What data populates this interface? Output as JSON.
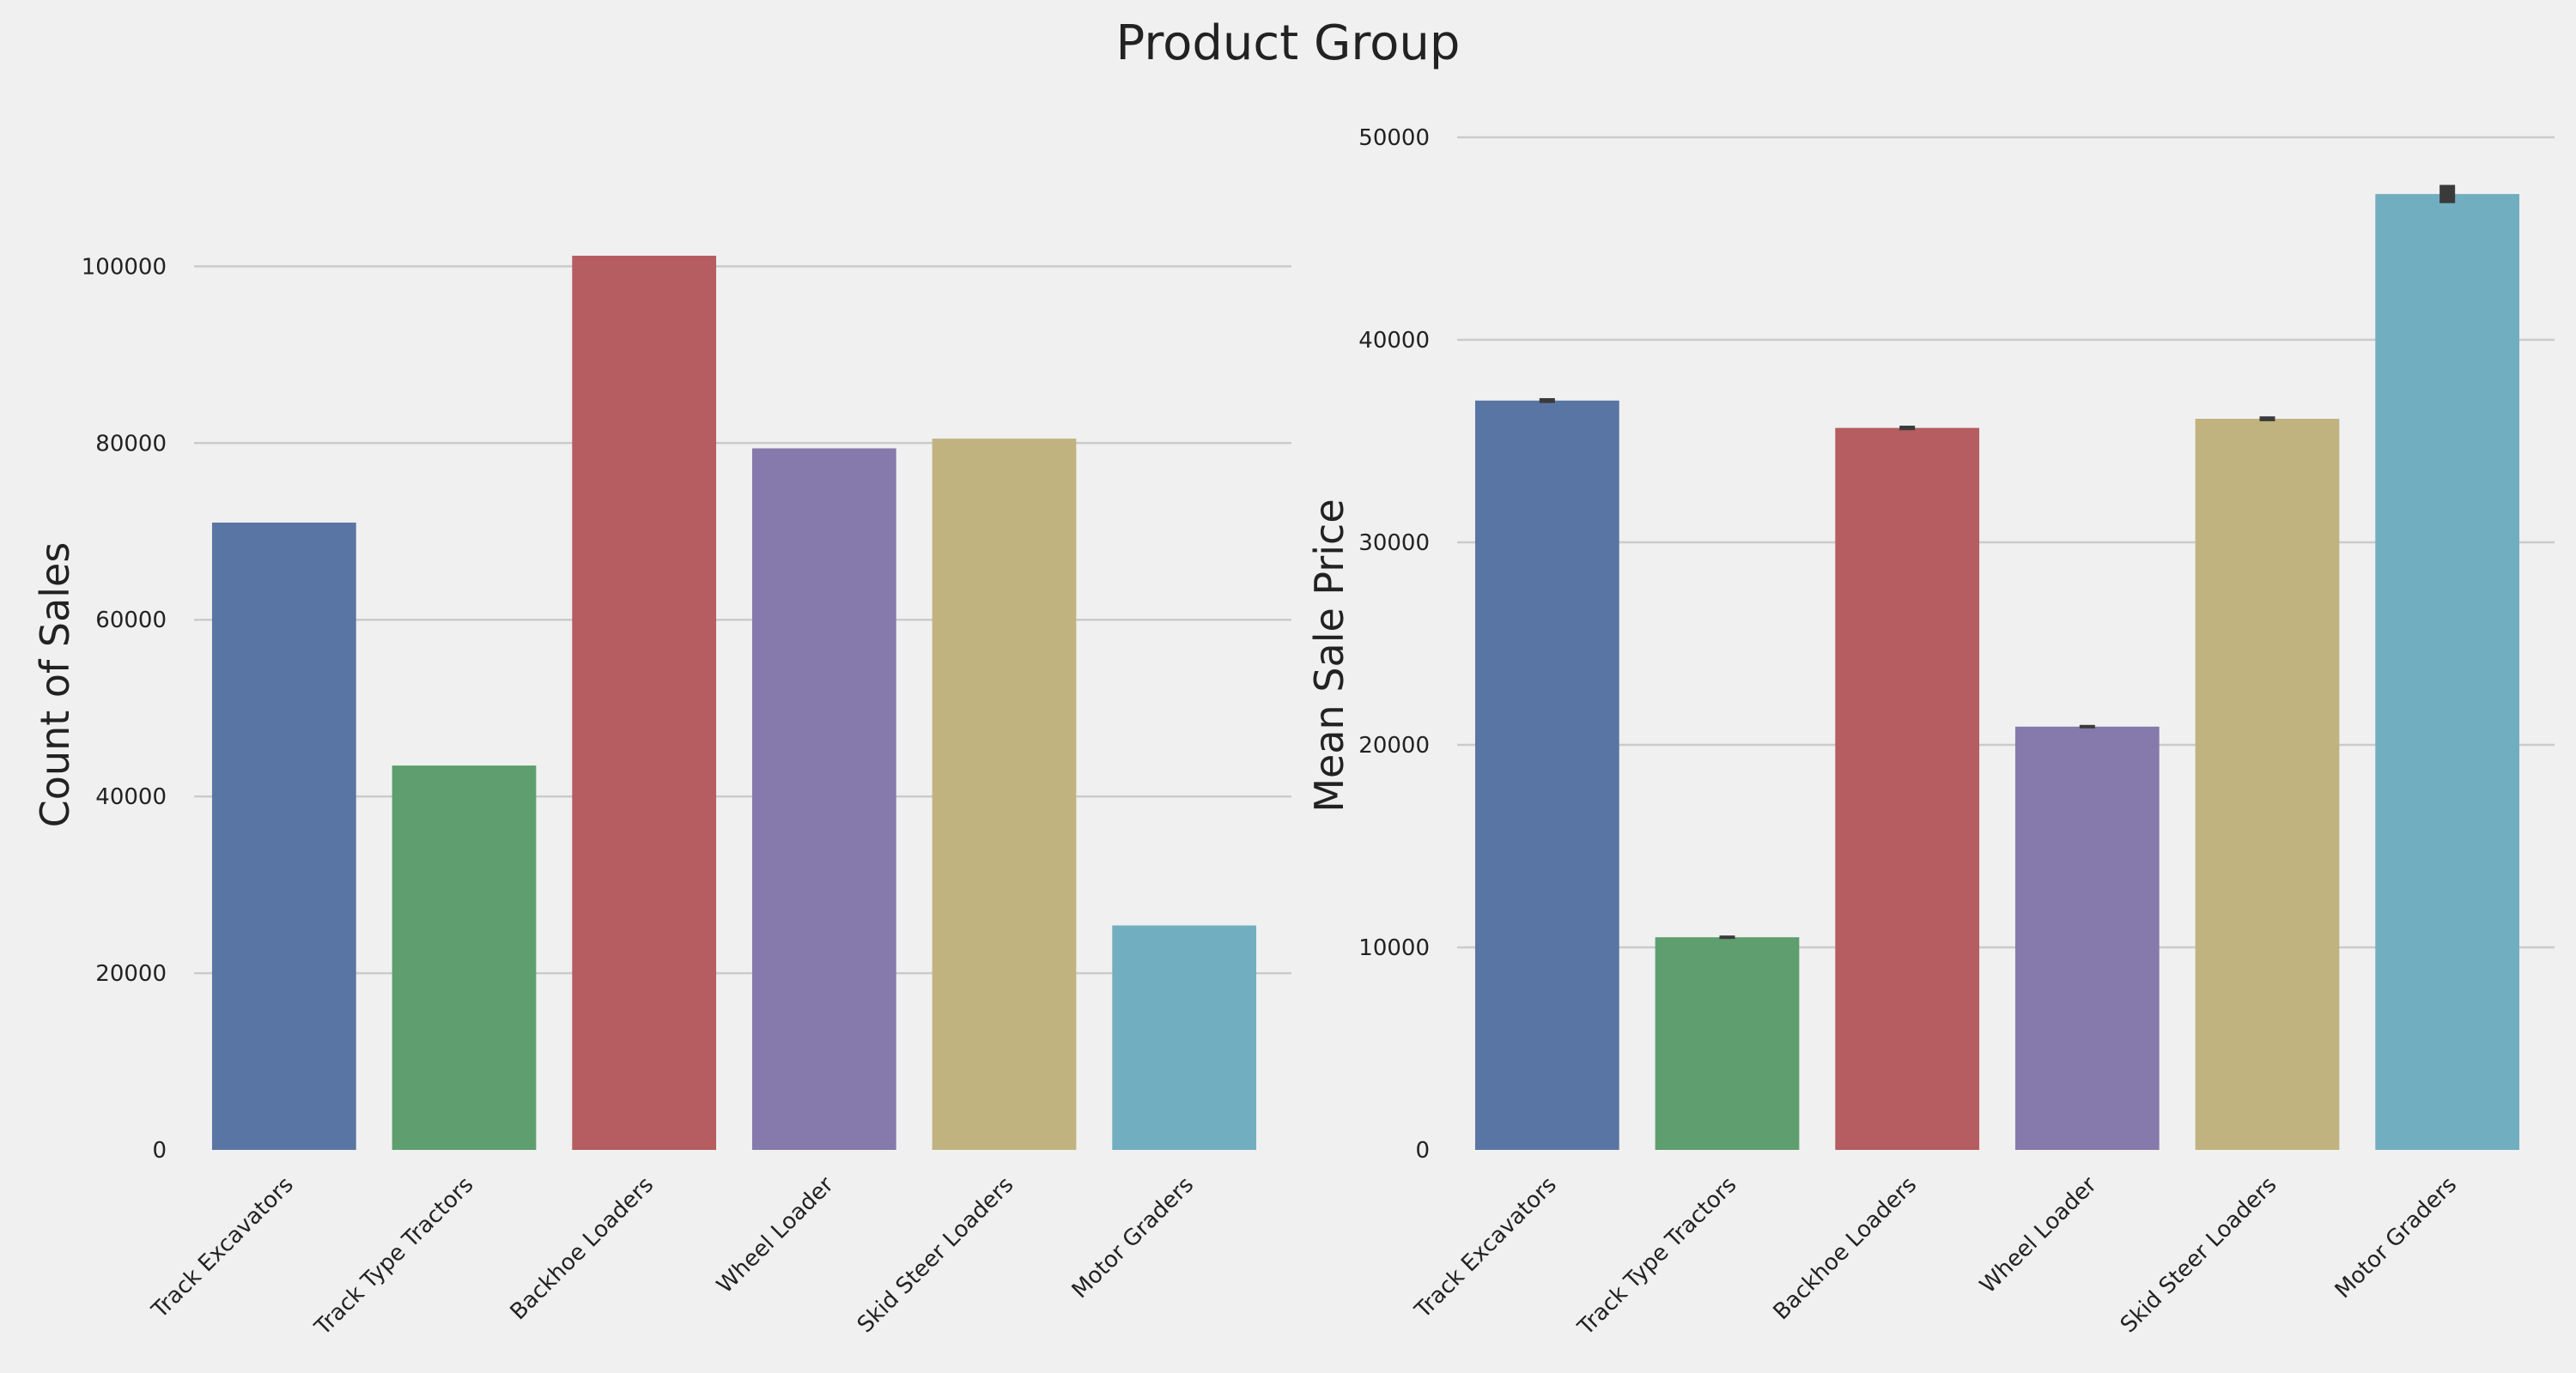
{
  "suptitle": "Product Group",
  "chart_data": [
    {
      "type": "bar",
      "categories": [
        "Track Excavators",
        "Track Type Tractors",
        "Backhoe Loaders",
        "Wheel Loader",
        "Skid Steer Loaders",
        "Motor Graders"
      ],
      "values": [
        71000,
        43500,
        101200,
        79400,
        80500,
        25400
      ],
      "colors": [
        "#5975a4",
        "#5f9e6e",
        "#b55d60",
        "#857aab",
        "#c1b37f",
        "#71aec0"
      ],
      "xlabel": "",
      "ylabel": "Count of Sales",
      "ylim": [
        0,
        108000
      ],
      "yticks": [
        0,
        20000,
        40000,
        60000,
        80000,
        100000
      ],
      "ytick_labels": [
        "0",
        "20000",
        "40000",
        "60000",
        "80000",
        "100000"
      ],
      "grid": true
    },
    {
      "type": "bar",
      "categories": [
        "Track Excavators",
        "Track Type Tractors",
        "Backhoe Loaders",
        "Wheel Loader",
        "Skid Steer Loaders",
        "Motor Graders"
      ],
      "values": [
        37000,
        10500,
        35650,
        20900,
        36100,
        47200
      ],
      "errors": [
        120,
        60,
        110,
        50,
        120,
        450
      ],
      "colors": [
        "#5975a4",
        "#5f9e6e",
        "#b55d60",
        "#857aab",
        "#c1b37f",
        "#71aec0"
      ],
      "xlabel": "",
      "ylabel": "Mean Sale Price",
      "ylim": [
        0,
        50000
      ],
      "yticks": [
        0,
        10000,
        20000,
        30000,
        40000,
        50000
      ],
      "ytick_labels": [
        "0",
        "10000",
        "20000",
        "30000",
        "40000",
        "50000"
      ],
      "grid": true
    }
  ]
}
